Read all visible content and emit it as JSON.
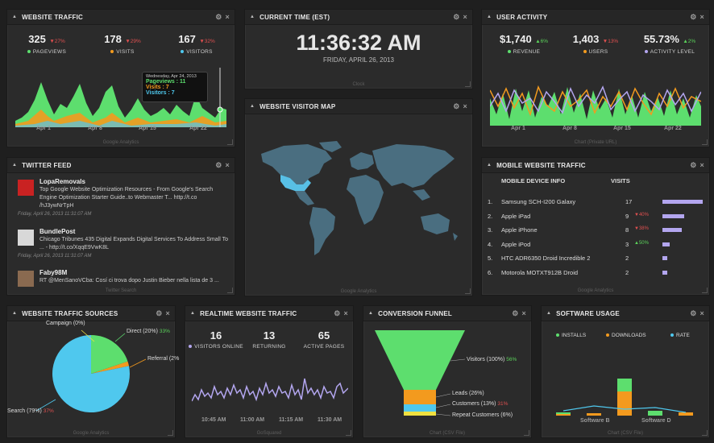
{
  "widgets": {
    "website_traffic": {
      "title": "WEBSITE TRAFFIC",
      "stats": [
        {
          "value": "325",
          "change": "▼27%",
          "label": "PAGEVIEWS",
          "color": "#5dde6e"
        },
        {
          "value": "178",
          "change": "▼29%",
          "label": "VISITS",
          "color": "#f39a1e"
        },
        {
          "value": "167",
          "change": "▼32%",
          "label": "VISITORS",
          "color": "#4fc8ee"
        }
      ],
      "tooltip": {
        "date": "Wednesday, Apr 24, 2013",
        "pageviews": "Pageviews : 11",
        "visits": "Visits : 7",
        "visitors": "Visitors : 7"
      },
      "xticks": [
        "Apr 1",
        "Apr 8",
        "Apr 15",
        "Apr 22"
      ],
      "footer": "Google Analytics"
    },
    "current_time": {
      "title": "CURRENT TIME (EST)",
      "time": "11:36:32 AM",
      "date": "FRIDAY, APRIL 26, 2013",
      "footer": "Clock"
    },
    "user_activity": {
      "title": "USER ACTIVITY",
      "stats": [
        {
          "value": "$1,740",
          "change": "▲6%",
          "dir": "up",
          "label": "REVENUE",
          "color": "#5dde6e"
        },
        {
          "value": "1,403",
          "change": "▼13%",
          "dir": "dn",
          "label": "USERS",
          "color": "#f39a1e"
        },
        {
          "value": "55.73%",
          "change": "▲2%",
          "dir": "up",
          "label": "ACTIVITY LEVEL",
          "color": "#b3a6ef"
        }
      ],
      "xticks": [
        "Apr 1",
        "Apr 8",
        "Apr 15",
        "Apr 22"
      ],
      "footer": "Chart (Private URL)"
    },
    "visitor_map": {
      "title": "WEBSITE VISITOR MAP",
      "footer": "Google Analytics"
    },
    "twitter": {
      "title": "TWITTER FEED",
      "tweets": [
        {
          "name": "LopaRemovals",
          "text": "Top Google Website Optimization Resources - From Google's Search Engine Optimization Starter Guide..to Webmaster T... http://t.co /hJ3ywNrTpH",
          "time": "Friday, April 26, 2013 11:31:07 AM"
        },
        {
          "name": "BundlePost",
          "text": "Chicago Tribunes 435 Digital Expands Digital Services To Address Small To ... - http://t.co/XqqE9VwK8L",
          "time": "Friday, April 26, 2013 11:31:07 AM"
        },
        {
          "name": "Faby98M",
          "text": "RT @MenSanoVCba: Cosí ci trova dopo Justin Bieber nella lista de 3 ...",
          "time": ""
        }
      ],
      "footer": "Twitter Search"
    },
    "mobile": {
      "title": "MOBILE WEBSITE TRAFFIC",
      "col1": "MOBILE DEVICE INFO",
      "col2": "VISITS",
      "rows": [
        {
          "n": "1.",
          "device": "Samsung SCH-I200 Galaxy",
          "visits": "17",
          "change": "",
          "dir": "",
          "pct": 1.0
        },
        {
          "n": "2.",
          "device": "Apple iPad",
          "visits": "9",
          "change": "▼40%",
          "dir": "dn",
          "pct": 0.53
        },
        {
          "n": "3.",
          "device": "Apple iPhone",
          "visits": "8",
          "change": "▼38%",
          "dir": "dn",
          "pct": 0.47
        },
        {
          "n": "4.",
          "device": "Apple iPod",
          "visits": "3",
          "change": "▲50%",
          "dir": "up",
          "pct": 0.18
        },
        {
          "n": "5.",
          "device": "HTC ADR6350 Droid Incredible 2",
          "visits": "2",
          "change": "",
          "dir": "",
          "pct": 0.12
        },
        {
          "n": "6.",
          "device": "Motorola MOTXT912B Droid",
          "visits": "2",
          "change": "",
          "dir": "",
          "pct": 0.12
        }
      ],
      "footer": "Google Analytics"
    },
    "traffic_sources": {
      "title": "WEBSITE TRAFFIC SOURCES",
      "labels": {
        "campaign": "Campaign (0%)",
        "direct": "Direct (20%)",
        "direct_chg": "33%",
        "referral": "Referral (2%",
        "search": "Search (79%)",
        "search_chg": "37%"
      },
      "footer": "Google Analytics"
    },
    "realtime": {
      "title": "REALTIME WEBSITE TRAFFIC",
      "stats": [
        {
          "value": "16",
          "label": "VISITORS ONLINE"
        },
        {
          "value": "13",
          "label": "RETURNING"
        },
        {
          "value": "65",
          "label": "ACTIVE PAGES"
        }
      ],
      "xticks": [
        "10:45 AM",
        "11:00 AM",
        "11:15 AM",
        "11:30 AM"
      ],
      "footer": "GoSquared"
    },
    "funnel": {
      "title": "CONVERSION FUNNEL",
      "labels": {
        "visitors": "Visitors (100%)",
        "visitors_chg": "56%",
        "leads": "Leads (26%)",
        "customers": "Customers (13%)",
        "customers_chg": "31%",
        "repeat": "Repeat Customers (6%)"
      },
      "footer": "Chart (CSV File)"
    },
    "software": {
      "title": "SOFTWARE USAGE",
      "legend": [
        {
          "label": "INSTALLS",
          "color": "#5dde6e"
        },
        {
          "label": "DOWNLOADS",
          "color": "#f39a1e"
        },
        {
          "label": "RATE",
          "color": "#4fc8ee"
        }
      ],
      "xticks": [
        "Software B",
        "Software D"
      ],
      "footer": "Chart (CSV File)"
    }
  },
  "chart_data": [
    {
      "type": "pie",
      "title": "WEBSITE TRAFFIC SOURCES",
      "categories": [
        "Search",
        "Direct",
        "Referral",
        "Campaign"
      ],
      "values": [
        79,
        20,
        2,
        0
      ]
    },
    {
      "type": "bar",
      "title": "CONVERSION FUNNEL",
      "categories": [
        "Visitors",
        "Leads",
        "Customers",
        "Repeat Customers"
      ],
      "values": [
        100,
        26,
        13,
        6
      ]
    }
  ]
}
